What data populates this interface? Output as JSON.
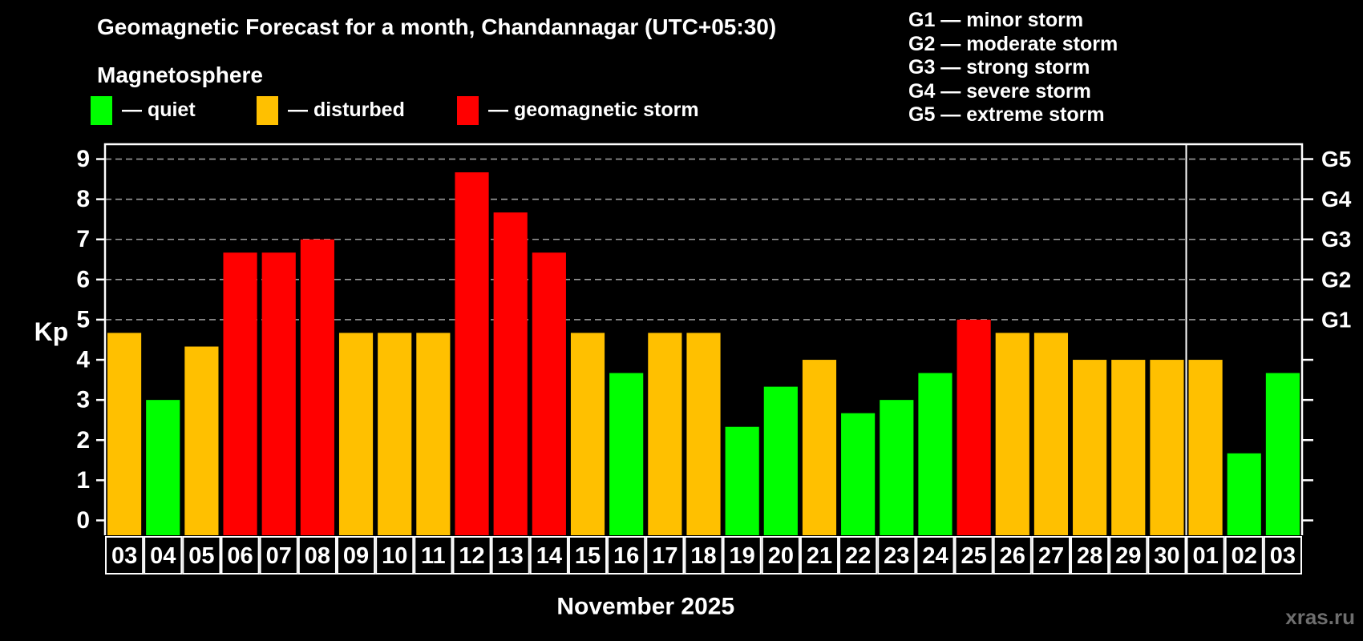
{
  "subtitle": "Magnetosphere",
  "legend": {
    "quiet": "— quiet",
    "disturbed": "— disturbed",
    "storm": "— geomagnetic storm"
  },
  "g_legend": [
    "G1 — minor storm",
    "G2 — moderate storm",
    "G3 — strong storm",
    "G4 — severe storm",
    "G5 — extreme storm"
  ],
  "watermark": "xras.ru",
  "chart_data": {
    "type": "bar",
    "title": "Geomagnetic Forecast for a month, Chandannagar (UTC+05:30)",
    "ylabel": "Kp",
    "month_label": "November 2025",
    "categories": [
      "03",
      "04",
      "05",
      "06",
      "07",
      "08",
      "09",
      "10",
      "11",
      "12",
      "13",
      "14",
      "15",
      "16",
      "17",
      "18",
      "19",
      "20",
      "21",
      "22",
      "23",
      "24",
      "25",
      "26",
      "27",
      "28",
      "29",
      "30",
      "01",
      "02",
      "03"
    ],
    "values": [
      4.67,
      3,
      4.33,
      6.67,
      6.67,
      7,
      4.67,
      4.67,
      4.67,
      8.67,
      7.67,
      6.67,
      4.67,
      3.67,
      4.67,
      4.67,
      2.33,
      3.33,
      4,
      2.67,
      3,
      3.67,
      5,
      4.67,
      4.67,
      4,
      4,
      4,
      4,
      1.67,
      3.67
    ],
    "statuses": [
      "disturbed",
      "quiet",
      "disturbed",
      "storm",
      "storm",
      "storm",
      "disturbed",
      "disturbed",
      "disturbed",
      "storm",
      "storm",
      "storm",
      "disturbed",
      "quiet",
      "disturbed",
      "disturbed",
      "quiet",
      "quiet",
      "disturbed",
      "quiet",
      "quiet",
      "quiet",
      "storm",
      "disturbed",
      "disturbed",
      "disturbed",
      "disturbed",
      "disturbed",
      "disturbed",
      "quiet",
      "quiet"
    ],
    "colors": {
      "quiet": "#00ff00",
      "disturbed": "#ffc000",
      "storm": "#ff0000"
    },
    "ylim": [
      -0.37,
      9.37
    ],
    "y_ticks": [
      0,
      1,
      2,
      3,
      4,
      5,
      6,
      7,
      8,
      9
    ],
    "grid_levels": [
      5,
      6,
      7,
      8,
      9
    ],
    "right_axis_labels": [
      {
        "label": "G5",
        "kp": 9
      },
      {
        "label": "G4",
        "kp": 8
      },
      {
        "label": "G3",
        "kp": 7
      },
      {
        "label": "G2",
        "kp": 6
      },
      {
        "label": "G1",
        "kp": 5
      }
    ],
    "month_separator_index": 28,
    "legend_position": "top-left",
    "grid": "dashed-horizontal-storm-levels-only"
  }
}
